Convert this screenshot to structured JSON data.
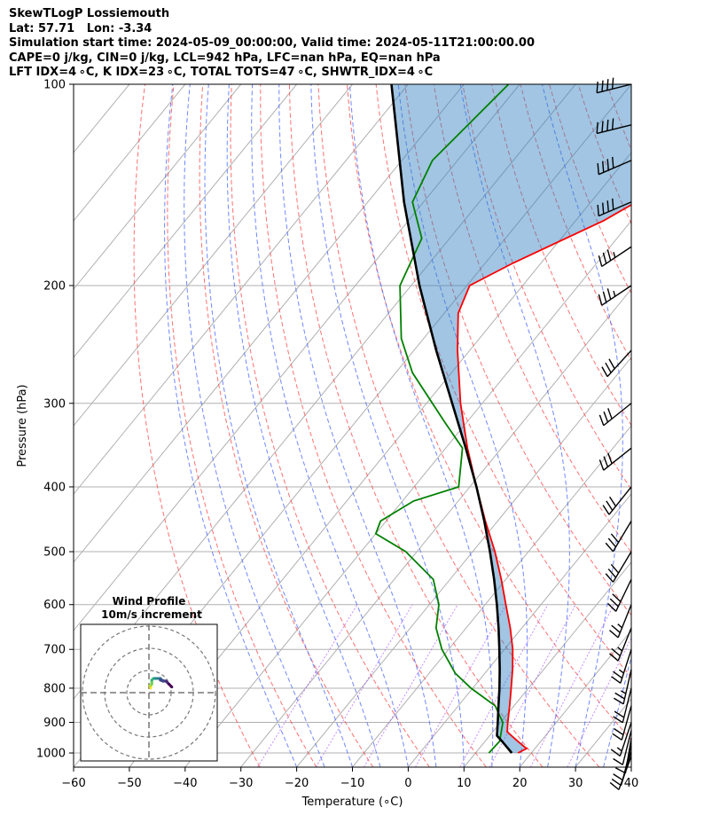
{
  "header": {
    "title": "SkewTLogP Lossiemouth",
    "location": "Lat: 57.71   Lon: -3.34",
    "times": "Simulation start time: 2024-05-09_00:00:00, Valid time: 2024-05-11T21:00:00.00",
    "indices1": "CAPE=0 j/kg, CIN=0 j/kg, LCL=942 hPa, LFC=nan hPa, EQ=nan hPa",
    "indices2": "LFT IDX=4 ∘C, K IDX=23 ∘C, TOTAL TOTS=47 ∘C, SHWTR_IDX=4 ∘C"
  },
  "chart_data": {
    "type": "line",
    "subtype": "skew-T log-P diagram",
    "xlabel": "Temperature (∘C)",
    "ylabel": "Pressure (hPa)",
    "xlim": [
      -60,
      40
    ],
    "ylim": [
      1050,
      100
    ],
    "y_scale": "log",
    "x_ticks": [
      "−60",
      "−50",
      "−40",
      "−30",
      "−20",
      "−10",
      "0",
      "10",
      "20",
      "30",
      "40"
    ],
    "y_ticks": [
      "100",
      "200",
      "300",
      "400",
      "500",
      "600",
      "700",
      "800",
      "900",
      "1000"
    ],
    "grid": true,
    "series": [
      {
        "role": "temperature",
        "color": "#ff0000",
        "p": [
          1000,
          985,
          960,
          930,
          900,
          850,
          800,
          750,
          700,
          650,
          600,
          550,
          500,
          450,
          400,
          350,
          300,
          250,
          220,
          200,
          185,
          160,
          140,
          120,
          105,
          100
        ],
        "t": [
          17.6,
          18.5,
          15.8,
          12.6,
          11.3,
          9.2,
          6.9,
          4.4,
          1.5,
          -2.1,
          -6.3,
          -10.8,
          -16.0,
          -22.2,
          -28.8,
          -36.1,
          -43.9,
          -52.2,
          -57.5,
          -59.5,
          -55.0,
          -45.0,
          -38.5,
          -31.0,
          -26.0,
          -24.0
        ]
      },
      {
        "role": "dewpoint",
        "color": "#008000",
        "p": [
          1000,
          960,
          900,
          850,
          800,
          760,
          700,
          650,
          600,
          550,
          500,
          470,
          450,
          420,
          400,
          350,
          320,
          270,
          240,
          200,
          170,
          150,
          130,
          100
        ],
        "td": [
          12.4,
          12.6,
          10.4,
          6.6,
          -0.3,
          -5.3,
          -11.2,
          -15.4,
          -18.3,
          -23.0,
          -32.0,
          -40.0,
          -41.0,
          -38.0,
          -32.0,
          -37.0,
          -44.0,
          -57.0,
          -64.0,
          -72.0,
          -75.0,
          -82.0,
          -84.5,
          -82.0
        ]
      },
      {
        "role": "parcel",
        "color": "#000000",
        "p": [
          1000,
          960,
          942,
          900,
          850,
          800,
          750,
          700,
          650,
          600,
          550,
          500,
          450,
          400,
          350,
          300,
          250,
          200,
          150,
          100
        ],
        "t": [
          16.5,
          13.0,
          11.3,
          9.5,
          7.2,
          4.8,
          2.1,
          -0.9,
          -4.2,
          -7.9,
          -12.1,
          -16.9,
          -22.4,
          -28.8,
          -36.4,
          -45.4,
          -56.0,
          -68.5,
          -83.5,
          -103.0
        ]
      }
    ],
    "wind_barbs": {
      "color": "#000000",
      "p": [
        1012,
        995,
        975,
        950,
        925,
        900,
        850,
        800,
        750,
        700,
        650,
        600,
        550,
        500,
        450,
        400,
        350,
        300,
        250,
        200,
        175,
        150,
        130,
        115,
        100
      ],
      "u_kt": [
        3,
        3,
        3,
        2,
        3,
        5,
        5,
        5,
        5,
        8,
        10,
        10,
        12,
        15,
        15,
        20,
        25,
        25,
        20,
        30,
        30,
        35,
        35,
        40,
        40
      ],
      "v_kt": [
        8,
        10,
        12,
        12,
        12,
        15,
        18,
        20,
        22,
        25,
        25,
        25,
        25,
        25,
        25,
        25,
        20,
        20,
        22,
        20,
        20,
        15,
        15,
        10,
        10
      ]
    },
    "inset": {
      "title": "Wind Profile",
      "subtitle": "10m/s increment",
      "rings_ms": [
        10,
        20,
        30
      ]
    }
  }
}
